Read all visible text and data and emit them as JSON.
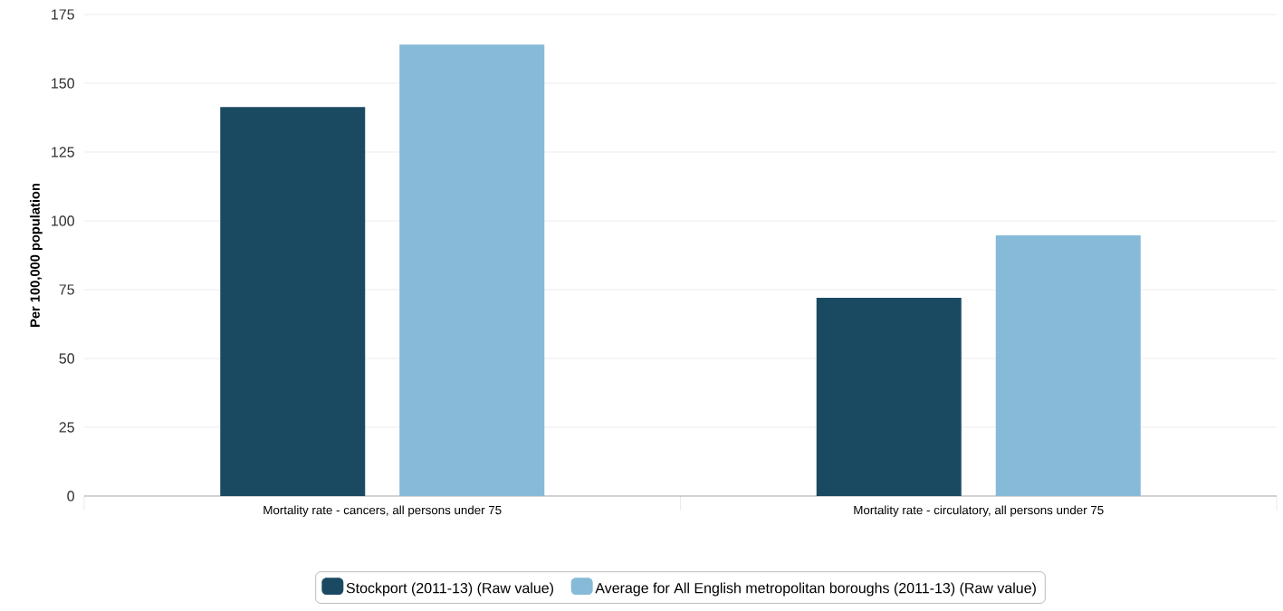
{
  "chart_data": {
    "type": "bar",
    "ylabel": "Per 100,000 population",
    "categories": [
      "Mortality rate - cancers, all persons under 75",
      "Mortality rate - circulatory, all persons under 75"
    ],
    "series": [
      {
        "name": "Stockport (2011-13) (Raw value)",
        "color": "#1a4a62",
        "values": [
          141.4,
          72.0
        ]
      },
      {
        "name": "Average for All English metropolitan boroughs (2011-13) (Raw value)",
        "color": "#86bad8",
        "values": [
          164.1,
          94.7
        ]
      }
    ],
    "ylim": [
      0,
      175
    ],
    "yticks": [
      0,
      25,
      50,
      75,
      100,
      125,
      150,
      175
    ],
    "grid": "y",
    "legend": "bottom"
  }
}
